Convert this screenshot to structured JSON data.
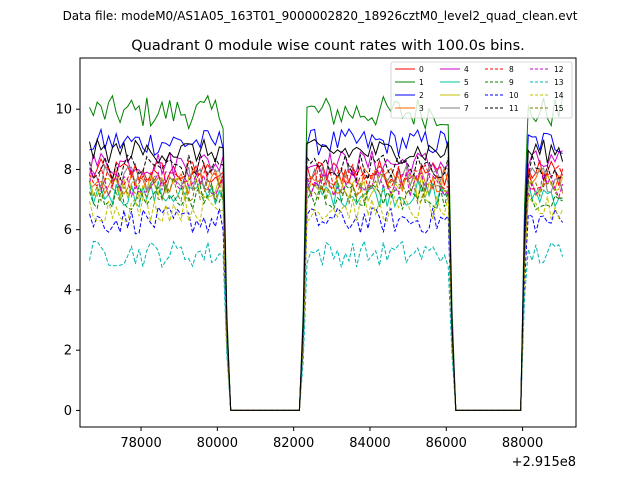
{
  "chart_data": {
    "type": "line",
    "suptitle": "Data file: modeM0/AS1A05_163T01_9000002820_18926cztM0_level2_quad_clean.evt",
    "title": "Quadrant 0 module wise count rates with 100.0s bins.",
    "xlabel": "",
    "ylabel": "",
    "x_offset_label": "+2.915e8",
    "xlim": [
      76400,
      89400
    ],
    "ylim": [
      -0.55,
      11.7
    ],
    "xticks": [
      78000,
      80000,
      82000,
      84000,
      86000,
      88000
    ],
    "xtick_labels": [
      "78000",
      "80000",
      "82000",
      "84000",
      "86000",
      "88000"
    ],
    "yticks": [
      0,
      2,
      4,
      6,
      8,
      10
    ],
    "ytick_labels": [
      "0",
      "2",
      "4",
      "6",
      "8",
      "10"
    ],
    "grid": false,
    "legend_position": "top-right",
    "bin_size_s": 100,
    "on_intervals": [
      [
        76650,
        80150
      ],
      [
        82350,
        86050
      ],
      [
        88100,
        89050
      ]
    ],
    "series": [
      {
        "name": "0",
        "color": "#ff0000",
        "style": "solid",
        "mean": 7.9
      },
      {
        "name": "1",
        "color": "#008000",
        "style": "solid",
        "mean": 9.9
      },
      {
        "name": "2",
        "color": "#0000ff",
        "style": "solid",
        "mean": 8.9
      },
      {
        "name": "3",
        "color": "#ff6600",
        "style": "solid",
        "mean": 7.6
      },
      {
        "name": "4",
        "color": "#cc00cc",
        "style": "solid",
        "mean": 8.2
      },
      {
        "name": "5",
        "color": "#00c4a0",
        "style": "solid",
        "mean": 7.2
      },
      {
        "name": "6",
        "color": "#c0c000",
        "style": "solid",
        "mean": 7.4
      },
      {
        "name": "7",
        "color": "#808080",
        "style": "solid",
        "mean": 7.7
      },
      {
        "name": "8",
        "color": "#ff0000",
        "style": "dashed",
        "mean": 7.8
      },
      {
        "name": "9",
        "color": "#008000",
        "style": "dashed",
        "mean": 7.1
      },
      {
        "name": "10",
        "color": "#0000ff",
        "style": "dashed",
        "mean": 6.3
      },
      {
        "name": "11",
        "color": "#000000",
        "style": "dashed",
        "mean": 8.1
      },
      {
        "name": "12",
        "color": "#cc00cc",
        "style": "dashed",
        "mean": 7.5
      },
      {
        "name": "13",
        "color": "#00b4b4",
        "style": "dashed",
        "mean": 5.2
      },
      {
        "name": "14",
        "color": "#c0c000",
        "style": "dashed",
        "mean": 6.7
      },
      {
        "name": "15",
        "color": "#808000",
        "style": "dashed",
        "mean": 7.3
      }
    ],
    "extra_solid_black_series_mean": 8.6
  }
}
